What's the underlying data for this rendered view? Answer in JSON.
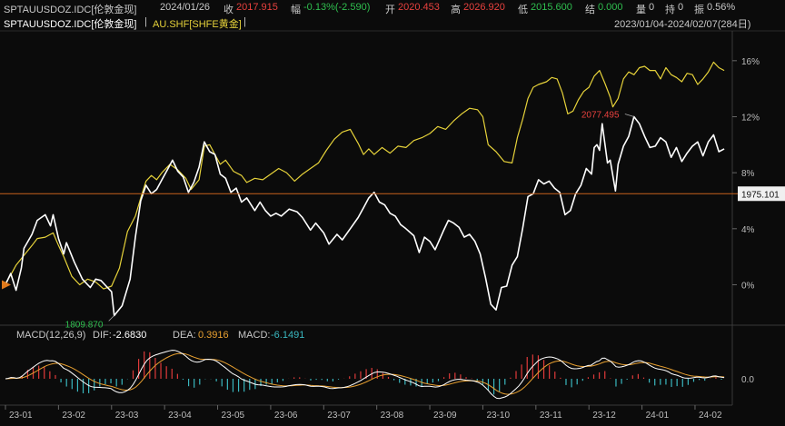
{
  "header": {
    "symbol": "SPTAUUSDOZ.IDC[伦敦金现]",
    "date": "2024/01/26",
    "close_label": "收",
    "close_value": "2017.915",
    "change_label": "幅",
    "change_value": "-0.13%(-2.590)",
    "open_label": "开",
    "open_value": "2020.453",
    "high_label": "高",
    "high_value": "2026.920",
    "low_label": "低",
    "low_value": "2015.600",
    "settle_label": "结",
    "settle_value": "0.000",
    "volume_label": "量",
    "volume_value": "0",
    "oi_label": "持",
    "oi_value": "0",
    "amplitude_label": "振",
    "amplitude_value": "0.56%"
  },
  "legend": {
    "series1": "SPTAUUSDOZ.IDC[伦敦金现]",
    "separator": "|",
    "series2": "AU.SHF[SHFE黄金]",
    "trailing_sep": "|",
    "range": "2023/01/04-2024/02/07(284日)"
  },
  "macd": {
    "title": "MACD(12,26,9)",
    "dif_label": "DIF:",
    "dif_value": "-2.6830",
    "dea_label": "DEA:",
    "dea_value": "0.3916",
    "macd_label": "MACD:",
    "macd_value": "-6.1491",
    "zero_label": "0.0"
  },
  "colors": {
    "background": "#0b0b0b",
    "series_white": "#ffffff",
    "series_gold": "#e6d23a",
    "ref_line": "#c8621c",
    "macd_pos": "#e03a3a",
    "macd_neg": "#3ab8c0",
    "dea_line": "#e8a030",
    "red_text": "#e8413e",
    "green_text": "#2fbf4f"
  },
  "chart_data": {
    "type": "line",
    "x_ticks": [
      "23-01",
      "23-02",
      "23-03",
      "23-04",
      "23-05",
      "23-06",
      "23-07",
      "23-08",
      "23-09",
      "23-10",
      "23-11",
      "23-12",
      "24-01",
      "24-02"
    ],
    "y_ticks": [
      "16%",
      "12%",
      "8%",
      "4%",
      "0%"
    ],
    "ylim": [
      -2.5,
      18
    ],
    "reference_value_label": "1975.101",
    "reference_pct": 6.5,
    "max_label": "2077.495",
    "min_label": "1809.870",
    "series": [
      {
        "name": "SPTAUUSDOZ.IDC[伦敦金现]",
        "color": "white",
        "points": [
          [
            0,
            0
          ],
          [
            0.1,
            0.8
          ],
          [
            0.2,
            -0.4
          ],
          [
            0.3,
            1.2
          ],
          [
            0.35,
            2.6
          ],
          [
            0.5,
            3.6
          ],
          [
            0.6,
            4.6
          ],
          [
            0.75,
            5.0
          ],
          [
            0.85,
            4.2
          ],
          [
            0.9,
            5.0
          ],
          [
            1.0,
            3.3
          ],
          [
            1.1,
            2.2
          ],
          [
            1.15,
            3.0
          ],
          [
            1.3,
            1.6
          ],
          [
            1.45,
            0.4
          ],
          [
            1.6,
            -0.2
          ],
          [
            1.7,
            0.4
          ],
          [
            1.8,
            0.3
          ],
          [
            1.9,
            -0.1
          ],
          [
            2.0,
            -0.5
          ],
          [
            2.05,
            -2.2
          ],
          [
            2.2,
            -1.5
          ],
          [
            2.35,
            0.4
          ],
          [
            2.45,
            3.4
          ],
          [
            2.55,
            6.0
          ],
          [
            2.65,
            7.1
          ],
          [
            2.75,
            6.5
          ],
          [
            2.85,
            6.8
          ],
          [
            2.95,
            7.5
          ],
          [
            3.05,
            8.2
          ],
          [
            3.15,
            8.9
          ],
          [
            3.25,
            8.1
          ],
          [
            3.35,
            7.7
          ],
          [
            3.45,
            6.6
          ],
          [
            3.55,
            7.3
          ],
          [
            3.65,
            8.4
          ],
          [
            3.75,
            10.2
          ],
          [
            3.85,
            9.5
          ],
          [
            3.95,
            9.3
          ],
          [
            4.05,
            7.9
          ],
          [
            4.15,
            7.6
          ],
          [
            4.25,
            6.6
          ],
          [
            4.35,
            6.9
          ],
          [
            4.45,
            5.9
          ],
          [
            4.55,
            6.2
          ],
          [
            4.7,
            5.3
          ],
          [
            4.8,
            5.9
          ],
          [
            4.9,
            5.3
          ],
          [
            5.0,
            4.9
          ],
          [
            5.1,
            5.1
          ],
          [
            5.2,
            4.9
          ],
          [
            5.35,
            5.4
          ],
          [
            5.5,
            5.2
          ],
          [
            5.6,
            4.8
          ],
          [
            5.75,
            3.9
          ],
          [
            5.85,
            4.4
          ],
          [
            6.0,
            3.7
          ],
          [
            6.1,
            2.9
          ],
          [
            6.25,
            3.6
          ],
          [
            6.35,
            3.2
          ],
          [
            6.5,
            4.0
          ],
          [
            6.65,
            4.8
          ],
          [
            6.75,
            5.5
          ],
          [
            6.85,
            6.2
          ],
          [
            6.95,
            6.6
          ],
          [
            7.05,
            5.9
          ],
          [
            7.15,
            5.7
          ],
          [
            7.25,
            5.1
          ],
          [
            7.35,
            4.9
          ],
          [
            7.45,
            4.3
          ],
          [
            7.55,
            4.0
          ],
          [
            7.7,
            3.5
          ],
          [
            7.8,
            2.3
          ],
          [
            7.9,
            3.4
          ],
          [
            8.0,
            3.1
          ],
          [
            8.1,
            2.5
          ],
          [
            8.25,
            3.8
          ],
          [
            8.35,
            4.6
          ],
          [
            8.45,
            4.4
          ],
          [
            8.55,
            4.1
          ],
          [
            8.65,
            3.4
          ],
          [
            8.75,
            3.6
          ],
          [
            8.85,
            3.1
          ],
          [
            8.95,
            2.2
          ],
          [
            9.05,
            0.5
          ],
          [
            9.15,
            -1.4
          ],
          [
            9.25,
            -1.8
          ],
          [
            9.35,
            -0.2
          ],
          [
            9.45,
            -0.1
          ],
          [
            9.55,
            1.4
          ],
          [
            9.65,
            2.0
          ],
          [
            9.75,
            4.0
          ],
          [
            9.85,
            6.3
          ],
          [
            9.95,
            6.5
          ],
          [
            10.05,
            7.5
          ],
          [
            10.15,
            7.2
          ],
          [
            10.25,
            7.4
          ],
          [
            10.35,
            6.9
          ],
          [
            10.45,
            6.6
          ],
          [
            10.55,
            5.0
          ],
          [
            10.65,
            5.3
          ],
          [
            10.75,
            6.5
          ],
          [
            10.85,
            7.1
          ],
          [
            10.95,
            8.3
          ],
          [
            11.05,
            7.9
          ],
          [
            11.1,
            9.8
          ],
          [
            11.15,
            10.0
          ],
          [
            11.2,
            9.6
          ],
          [
            11.25,
            11.5
          ],
          [
            11.3,
            10.1
          ],
          [
            11.35,
            8.7
          ],
          [
            11.4,
            8.9
          ],
          [
            11.5,
            6.7
          ],
          [
            11.55,
            8.6
          ],
          [
            11.65,
            9.9
          ],
          [
            11.75,
            10.6
          ],
          [
            11.85,
            12.0
          ],
          [
            11.95,
            11.5
          ],
          [
            12.05,
            10.6
          ],
          [
            12.15,
            9.8
          ],
          [
            12.25,
            9.9
          ],
          [
            12.35,
            10.5
          ],
          [
            12.45,
            10.2
          ],
          [
            12.55,
            9.1
          ],
          [
            12.65,
            9.8
          ],
          [
            12.75,
            8.8
          ],
          [
            12.85,
            9.4
          ],
          [
            12.95,
            9.9
          ],
          [
            13.05,
            10.2
          ],
          [
            13.15,
            9.2
          ],
          [
            13.25,
            10.2
          ],
          [
            13.35,
            10.7
          ],
          [
            13.45,
            9.5
          ],
          [
            13.55,
            9.7
          ]
        ]
      },
      {
        "name": "AU.SHF[SHFE黄金]",
        "color": "gold",
        "points": [
          [
            0,
            0.1
          ],
          [
            0.1,
            0.7
          ],
          [
            0.2,
            1.4
          ],
          [
            0.35,
            2.1
          ],
          [
            0.5,
            2.8
          ],
          [
            0.6,
            3.3
          ],
          [
            0.75,
            3.4
          ],
          [
            0.9,
            3.7
          ],
          [
            1.0,
            2.8
          ],
          [
            1.1,
            2.0
          ],
          [
            1.25,
            0.6
          ],
          [
            1.4,
            0.0
          ],
          [
            1.55,
            0.4
          ],
          [
            1.7,
            0.2
          ],
          [
            1.85,
            -0.3
          ],
          [
            2.0,
            -0.1
          ],
          [
            2.15,
            1.2
          ],
          [
            2.3,
            3.8
          ],
          [
            2.45,
            4.9
          ],
          [
            2.55,
            6.2
          ],
          [
            2.65,
            7.4
          ],
          [
            2.75,
            7.8
          ],
          [
            2.85,
            7.5
          ],
          [
            2.95,
            8.0
          ],
          [
            3.1,
            8.6
          ],
          [
            3.25,
            8.2
          ],
          [
            3.4,
            7.6
          ],
          [
            3.5,
            6.8
          ],
          [
            3.65,
            7.5
          ],
          [
            3.75,
            9.9
          ],
          [
            3.85,
            10.0
          ],
          [
            3.95,
            9.3
          ],
          [
            4.05,
            8.6
          ],
          [
            4.15,
            8.9
          ],
          [
            4.3,
            8.1
          ],
          [
            4.45,
            7.8
          ],
          [
            4.55,
            7.3
          ],
          [
            4.7,
            7.6
          ],
          [
            4.85,
            7.5
          ],
          [
            5.0,
            7.9
          ],
          [
            5.15,
            8.3
          ],
          [
            5.3,
            8.0
          ],
          [
            5.45,
            7.4
          ],
          [
            5.6,
            7.9
          ],
          [
            5.75,
            8.3
          ],
          [
            5.9,
            8.7
          ],
          [
            6.05,
            9.6
          ],
          [
            6.2,
            10.4
          ],
          [
            6.35,
            10.9
          ],
          [
            6.5,
            11.1
          ],
          [
            6.65,
            10.1
          ],
          [
            6.75,
            9.3
          ],
          [
            6.85,
            9.7
          ],
          [
            6.95,
            9.3
          ],
          [
            7.1,
            9.8
          ],
          [
            7.25,
            9.4
          ],
          [
            7.4,
            9.9
          ],
          [
            7.55,
            9.8
          ],
          [
            7.7,
            10.3
          ],
          [
            7.85,
            10.5
          ],
          [
            8.0,
            10.8
          ],
          [
            8.15,
            11.3
          ],
          [
            8.3,
            11.1
          ],
          [
            8.45,
            11.7
          ],
          [
            8.6,
            12.2
          ],
          [
            8.75,
            12.6
          ],
          [
            8.9,
            12.5
          ],
          [
            9.0,
            12.0
          ],
          [
            9.1,
            10.0
          ],
          [
            9.25,
            9.5
          ],
          [
            9.4,
            8.8
          ],
          [
            9.55,
            8.7
          ],
          [
            9.65,
            10.5
          ],
          [
            9.75,
            11.8
          ],
          [
            9.85,
            13.3
          ],
          [
            9.95,
            14.1
          ],
          [
            10.05,
            14.3
          ],
          [
            10.2,
            14.5
          ],
          [
            10.3,
            14.8
          ],
          [
            10.4,
            14.7
          ],
          [
            10.5,
            13.7
          ],
          [
            10.6,
            12.2
          ],
          [
            10.7,
            12.4
          ],
          [
            10.8,
            13.2
          ],
          [
            10.9,
            13.8
          ],
          [
            11.0,
            14.1
          ],
          [
            11.1,
            14.9
          ],
          [
            11.2,
            15.3
          ],
          [
            11.3,
            14.4
          ],
          [
            11.4,
            13.4
          ],
          [
            11.45,
            12.7
          ],
          [
            11.55,
            13.3
          ],
          [
            11.65,
            14.7
          ],
          [
            11.75,
            15.2
          ],
          [
            11.85,
            15.0
          ],
          [
            11.95,
            15.5
          ],
          [
            12.05,
            15.6
          ],
          [
            12.15,
            15.3
          ],
          [
            12.25,
            15.3
          ],
          [
            12.35,
            14.7
          ],
          [
            12.45,
            15.5
          ],
          [
            12.55,
            15.0
          ],
          [
            12.65,
            14.8
          ],
          [
            12.75,
            14.5
          ],
          [
            12.85,
            15.1
          ],
          [
            12.95,
            15.0
          ],
          [
            13.05,
            14.3
          ],
          [
            13.15,
            14.7
          ],
          [
            13.25,
            15.2
          ],
          [
            13.35,
            15.9
          ],
          [
            13.45,
            15.5
          ],
          [
            13.55,
            15.3
          ]
        ]
      }
    ]
  }
}
